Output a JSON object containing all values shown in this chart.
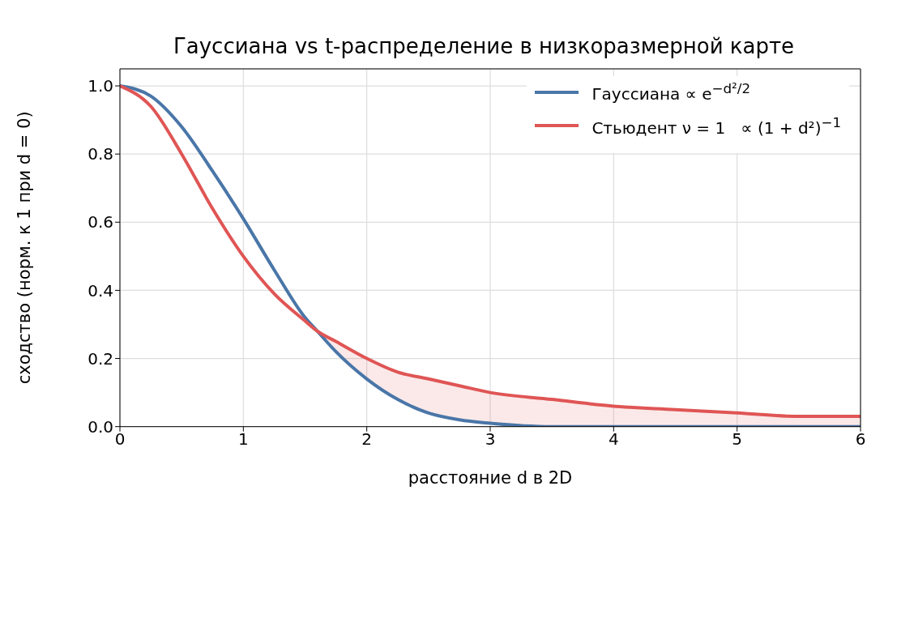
{
  "chart_data": {
    "type": "line",
    "title": "Гауссиана vs t-распределение в низкоразмерной карте",
    "xlabel": "расстояние d в 2D",
    "ylabel": "сходство (норм. к 1 при d = 0)",
    "x": [
      0,
      0.25,
      0.5,
      0.75,
      1,
      1.25,
      1.5,
      1.6,
      1.75,
      2,
      2.25,
      2.5,
      2.75,
      3,
      3.5,
      4,
      4.5,
      5,
      5.5,
      6
    ],
    "series": [
      {
        "name": "Гауссиана ∝ e$^{−d²/2}$",
        "color": "#4a76a8",
        "values": [
          1,
          0.97,
          0.88,
          0.75,
          0.61,
          0.46,
          0.32,
          0.28,
          0.22,
          0.14,
          0.08,
          0.04,
          0.02,
          0.01,
          0,
          0,
          0,
          0,
          0,
          0
        ]
      },
      {
        "name": "Стьюдент ν = 1   ∝ (1 + d²)$^{−1}$",
        "color": "#e05555",
        "values": [
          1,
          0.94,
          0.8,
          0.64,
          0.5,
          0.39,
          0.31,
          0.28,
          0.25,
          0.2,
          0.16,
          0.14,
          0.12,
          0.1,
          0.08,
          0.06,
          0.05,
          0.04,
          0.03,
          0.03
        ],
        "lower": [
          null,
          null,
          null,
          null,
          null,
          null,
          null,
          0.28,
          0.22,
          0.14,
          0.08,
          0.04,
          0.02,
          0.01,
          0,
          0,
          0,
          0,
          0,
          0
        ],
        "upper": [
          null,
          null,
          null,
          null,
          null,
          null,
          null,
          0.28,
          0.25,
          0.2,
          0.16,
          0.14,
          0.12,
          0.1,
          0.08,
          0.06,
          0.05,
          0.04,
          0.03,
          0.03
        ]
      }
    ],
    "xlim": [
      0,
      6
    ],
    "xticks": [
      0,
      1,
      2,
      3,
      4,
      5,
      6
    ],
    "ylim": [
      0,
      1.05
    ],
    "yticks": [
      {
        "value": 0,
        "label": "0.0"
      },
      {
        "value": 0.2,
        "label": "0.2"
      },
      {
        "value": 0.4,
        "label": "0.4"
      },
      {
        "value": 0.6,
        "label": "0.6"
      },
      {
        "value": 0.8,
        "label": "0.8"
      },
      {
        "value": 1,
        "label": "1.0"
      }
    ],
    "grid": true,
    "legend": "top right",
    "line_style": "solid",
    "marker": "none"
  }
}
